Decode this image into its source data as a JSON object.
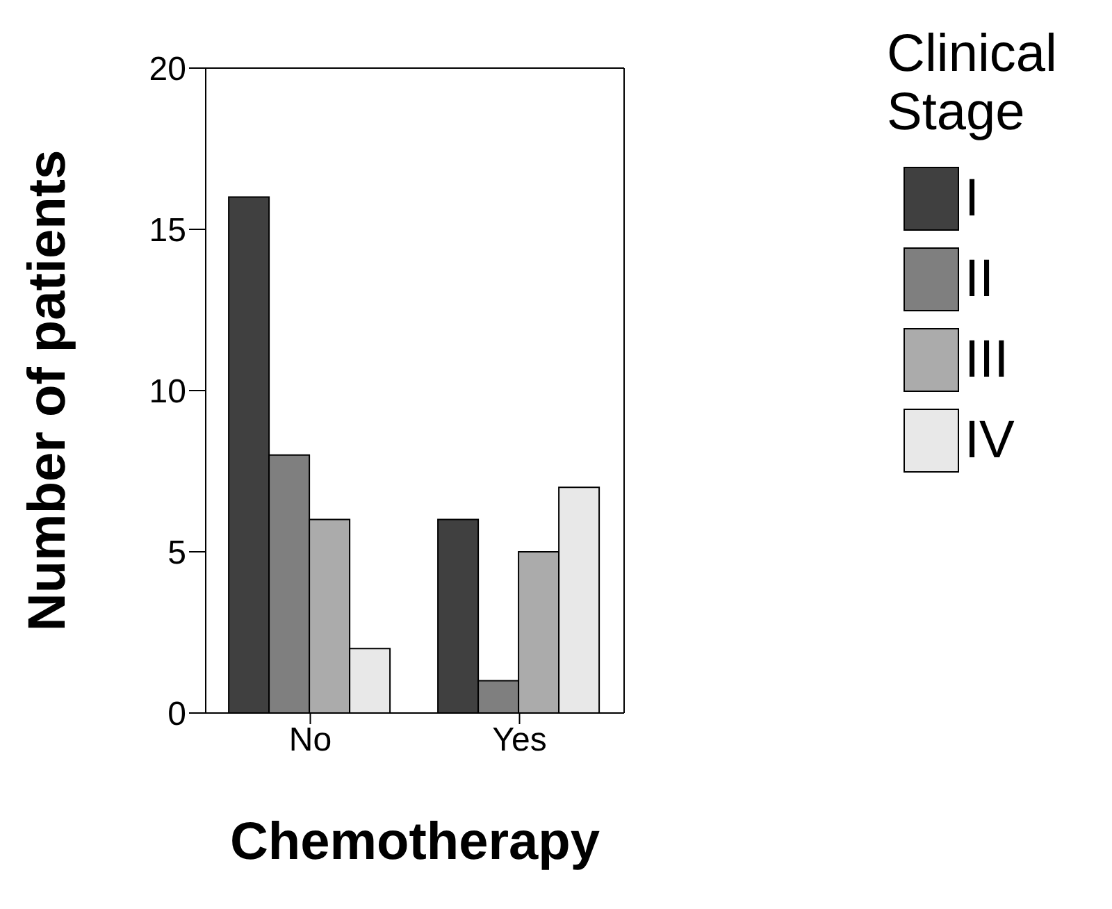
{
  "chart_data": {
    "type": "bar",
    "xlabel": "Chemotherapy",
    "ylabel": "Number of patients",
    "legend_title": "Clinical Stage",
    "categories": [
      "No",
      "Yes"
    ],
    "series": [
      {
        "name": "I",
        "color": "#404040",
        "values": [
          16,
          6
        ]
      },
      {
        "name": "II",
        "color": "#7f7f7f",
        "values": [
          8,
          1
        ]
      },
      {
        "name": "III",
        "color": "#ababab",
        "values": [
          6,
          5
        ]
      },
      {
        "name": "IV",
        "color": "#e8e8e8",
        "values": [
          2,
          7
        ]
      }
    ],
    "ylim": [
      0,
      20
    ],
    "yticks": [
      0,
      5,
      10,
      15,
      20
    ],
    "legend": "right",
    "grid": false
  }
}
